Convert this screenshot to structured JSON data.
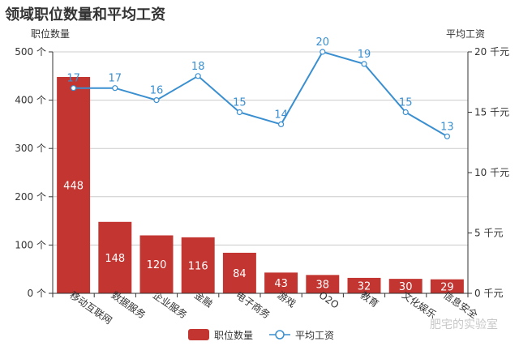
{
  "title": "领域职位数量和平均工资",
  "watermark": "肥宅的实验室",
  "colors": {
    "bar": "#c23531",
    "line": "#3a8fd0",
    "grid": "#cccccc",
    "axis": "#333333"
  },
  "chart_data": {
    "type": "bar+line",
    "title": "领域职位数量和平均工资",
    "categories": [
      "移动互联网",
      "数据服务",
      "企业服务",
      "金融",
      "电子商务",
      "游戏",
      "O2O",
      "教育",
      "文化娱乐",
      "信息安全"
    ],
    "series": [
      {
        "name": "职位数量",
        "type": "bar",
        "axis": "left",
        "values": [
          448,
          148,
          120,
          116,
          84,
          43,
          38,
          32,
          30,
          29
        ]
      },
      {
        "name": "平均工资",
        "type": "line",
        "axis": "right",
        "values": [
          17,
          17,
          16,
          18,
          15,
          14,
          20,
          19,
          15,
          13
        ]
      }
    ],
    "left_axis": {
      "name": "职位数量",
      "unit": "个",
      "ylim": [
        0,
        500
      ],
      "ticks": [
        0,
        100,
        200,
        300,
        400,
        500
      ]
    },
    "right_axis": {
      "name": "平均工资",
      "unit": "千元",
      "ylim": [
        0,
        20
      ],
      "ticks": [
        0,
        5,
        10,
        15,
        20
      ]
    },
    "legend": [
      "职位数量",
      "平均工资"
    ],
    "legend_position": "bottom-center",
    "grid": true
  }
}
